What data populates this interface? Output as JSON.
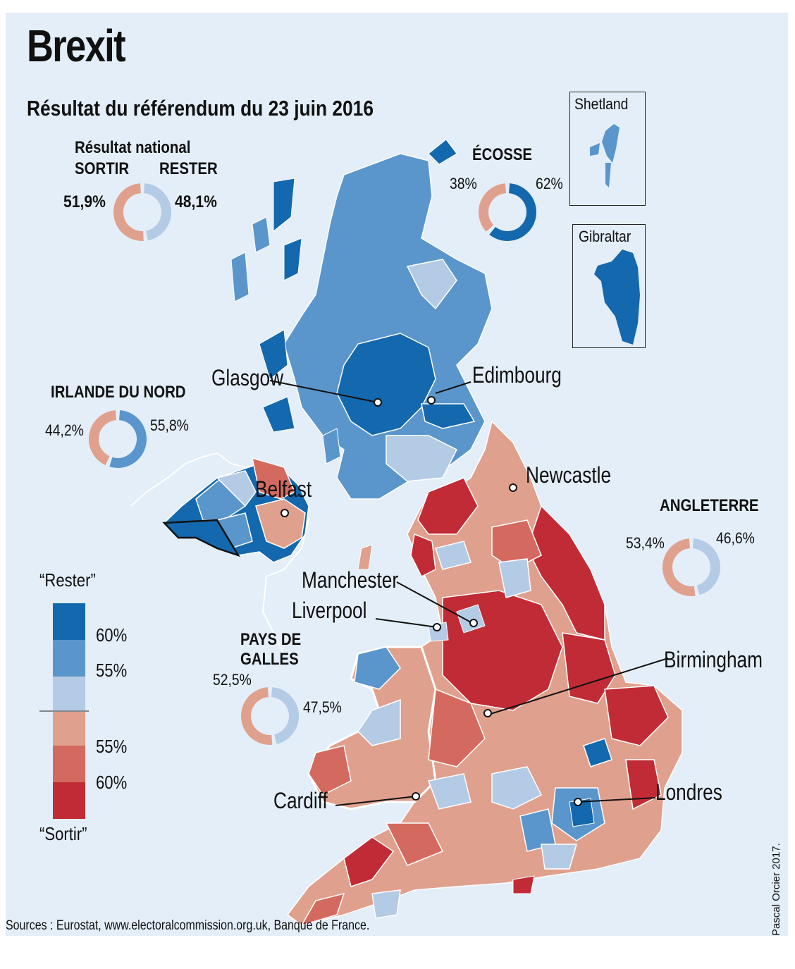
{
  "title": "Brexit",
  "subtitle": "Résultat du référendum du 23 juin 2016",
  "colors": {
    "remain_60": "#1468ad",
    "remain_55": "#5a96cc",
    "remain_50": "#b4cbe6",
    "leave_50": "#e0a08e",
    "leave_55": "#d46a5f",
    "leave_60": "#c12b35",
    "sea": "#e3eef8"
  },
  "national": {
    "heading": "Résultat national",
    "leave_label": "SORTIR",
    "remain_label": "RESTER",
    "leave_pct": "51,9%",
    "remain_pct": "48,1%",
    "leave_value": 51.9,
    "remain_value": 48.1
  },
  "regions": {
    "scotland": {
      "name": "ÉCOSSE",
      "leave_pct": "38%",
      "remain_pct": "62%",
      "leave_value": 38,
      "remain_value": 62
    },
    "northern_ireland": {
      "name": "IRLANDE DU NORD",
      "leave_pct": "44,2%",
      "remain_pct": "55,8%",
      "leave_value": 44.2,
      "remain_value": 55.8
    },
    "england": {
      "name": "ANGLETERRE",
      "leave_pct": "53,4%",
      "remain_pct": "46,6%",
      "leave_value": 53.4,
      "remain_value": 46.6
    },
    "wales": {
      "name_line1": "PAYS DE",
      "name_line2": "GALLES",
      "leave_pct": "52,5%",
      "remain_pct": "47,5%",
      "leave_value": 52.5,
      "remain_value": 47.5
    }
  },
  "insets": {
    "shetland": "Shetland",
    "gibraltar": "Gibraltar"
  },
  "cities": {
    "glasgow": "Glasgow",
    "edinburgh": "Edimbourg",
    "belfast": "Belfast",
    "newcastle": "Newcastle",
    "manchester": "Manchester",
    "liverpool": "Liverpool",
    "birmingham": "Birmingham",
    "cardiff": "Cardiff",
    "london": "Londres"
  },
  "legend": {
    "top_label": "“Rester”",
    "bottom_label": "“Sortir”",
    "ticks_remain": [
      "60%",
      "55%"
    ],
    "ticks_leave": [
      "55%",
      "60%"
    ]
  },
  "sources": "Sources : Eurostat, www.electoralcommission.org.uk, Banque de France.",
  "credit": "Pascal Orcier 2017."
}
